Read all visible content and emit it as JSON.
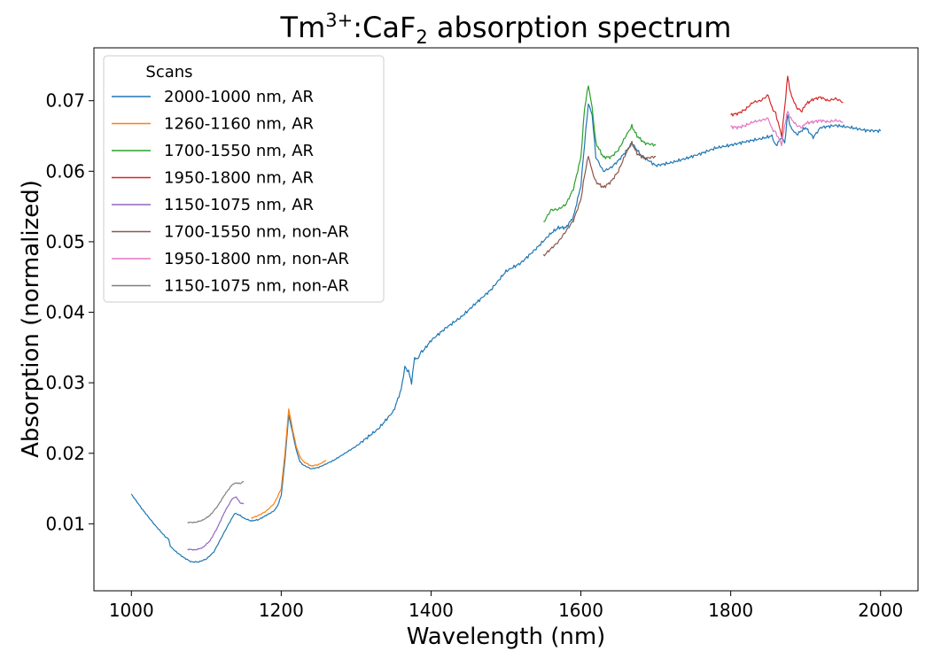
{
  "chart_data": {
    "type": "line",
    "title_parts": {
      "pre": "Tm",
      "sup": "3+",
      "mid": ":CaF",
      "sub": "2",
      "post": " absorption spectrum"
    },
    "xlabel": "Wavelength (nm)",
    "ylabel": "Absorption (normalized)",
    "xlim": [
      950,
      2050
    ],
    "ylim": [
      0.0005,
      0.0775
    ],
    "xticks": [
      1000,
      1200,
      1400,
      1600,
      1800,
      2000
    ],
    "yticks": [
      0.01,
      0.02,
      0.03,
      0.04,
      0.05,
      0.06,
      0.07
    ],
    "ytick_labels": [
      "0.01",
      "0.02",
      "0.03",
      "0.04",
      "0.05",
      "0.06",
      "0.07"
    ],
    "grid": false,
    "legend": {
      "title": "Scans",
      "placement": "top-left"
    },
    "series": [
      {
        "name": "2000-1000 nm, AR",
        "color": "#1f77b4",
        "x": [
          1000,
          1015,
          1030,
          1045,
          1050,
          1052,
          1060,
          1070,
          1080,
          1090,
          1100,
          1110,
          1120,
          1130,
          1138,
          1145,
          1150,
          1160,
          1170,
          1180,
          1190,
          1195,
          1200,
          1205,
          1210,
          1215,
          1220,
          1225,
          1230,
          1240,
          1250,
          1270,
          1300,
          1330,
          1350,
          1360,
          1365,
          1370,
          1374,
          1378,
          1382,
          1386,
          1390,
          1400,
          1420,
          1440,
          1460,
          1480,
          1500,
          1520,
          1540,
          1560,
          1570,
          1580,
          1590,
          1600,
          1605,
          1610,
          1615,
          1620,
          1630,
          1640,
          1650,
          1660,
          1668,
          1680,
          1700,
          1720,
          1740,
          1760,
          1780,
          1800,
          1820,
          1840,
          1855,
          1860,
          1868,
          1872,
          1876,
          1880,
          1888,
          1900,
          1910,
          1920,
          1940,
          1960,
          1980,
          2000
        ],
        "y": [
          0.0142,
          0.012,
          0.01,
          0.0082,
          0.0078,
          0.0068,
          0.006,
          0.0052,
          0.0046,
          0.0046,
          0.005,
          0.006,
          0.008,
          0.01,
          0.0115,
          0.0112,
          0.0108,
          0.0104,
          0.0106,
          0.0112,
          0.0118,
          0.0125,
          0.014,
          0.019,
          0.0254,
          0.023,
          0.0205,
          0.0188,
          0.0183,
          0.0178,
          0.018,
          0.019,
          0.021,
          0.0235,
          0.026,
          0.029,
          0.0322,
          0.0316,
          0.03,
          0.0336,
          0.0333,
          0.0343,
          0.0346,
          0.036,
          0.0378,
          0.0393,
          0.0413,
          0.0432,
          0.0458,
          0.047,
          0.049,
          0.0512,
          0.052,
          0.052,
          0.0535,
          0.058,
          0.064,
          0.0696,
          0.068,
          0.062,
          0.06,
          0.0605,
          0.0615,
          0.0628,
          0.064,
          0.0623,
          0.0608,
          0.0612,
          0.0618,
          0.0625,
          0.0633,
          0.0637,
          0.0642,
          0.0646,
          0.065,
          0.0636,
          0.0648,
          0.064,
          0.068,
          0.0662,
          0.0652,
          0.0662,
          0.0648,
          0.0662,
          0.0665,
          0.0662,
          0.0658,
          0.0657
        ]
      },
      {
        "name": "1260-1160 nm, AR",
        "color": "#ff7f0e",
        "x": [
          1160,
          1170,
          1180,
          1190,
          1195,
          1200,
          1205,
          1210,
          1215,
          1220,
          1225,
          1230,
          1240,
          1250,
          1260
        ],
        "y": [
          0.0108,
          0.0112,
          0.0118,
          0.0128,
          0.0138,
          0.015,
          0.02,
          0.0263,
          0.0235,
          0.021,
          0.0195,
          0.0188,
          0.0182,
          0.0184,
          0.019
        ]
      },
      {
        "name": "1700-1550 nm, AR",
        "color": "#2ca02c",
        "x": [
          1550,
          1560,
          1570,
          1580,
          1590,
          1600,
          1605,
          1610,
          1615,
          1620,
          1630,
          1640,
          1650,
          1660,
          1668,
          1675,
          1685,
          1700
        ],
        "y": [
          0.0527,
          0.0545,
          0.0546,
          0.0553,
          0.0575,
          0.062,
          0.069,
          0.0722,
          0.069,
          0.064,
          0.062,
          0.062,
          0.063,
          0.065,
          0.0664,
          0.065,
          0.064,
          0.0637
        ]
      },
      {
        "name": "1950-1800 nm, AR",
        "color": "#d62728",
        "x": [
          1800,
          1810,
          1820,
          1830,
          1840,
          1850,
          1855,
          1860,
          1868,
          1872,
          1876,
          1880,
          1888,
          1895,
          1900,
          1910,
          1920,
          1930,
          1940,
          1950
        ],
        "y": [
          0.068,
          0.0682,
          0.0688,
          0.0698,
          0.07,
          0.0708,
          0.069,
          0.0682,
          0.065,
          0.069,
          0.0735,
          0.071,
          0.069,
          0.0685,
          0.0695,
          0.0702,
          0.0705,
          0.07,
          0.0703,
          0.0698
        ]
      },
      {
        "name": "1150-1075 nm, AR",
        "color": "#9467bd",
        "x": [
          1075,
          1085,
          1095,
          1105,
          1115,
          1125,
          1135,
          1140,
          1145,
          1150
        ],
        "y": [
          0.0064,
          0.0063,
          0.0066,
          0.0076,
          0.0095,
          0.0118,
          0.0136,
          0.0138,
          0.013,
          0.0128
        ]
      },
      {
        "name": "1700-1550 nm, non-AR",
        "color": "#8c564b",
        "x": [
          1550,
          1560,
          1570,
          1580,
          1590,
          1600,
          1605,
          1610,
          1615,
          1620,
          1630,
          1640,
          1650,
          1660,
          1668,
          1675,
          1685,
          1700
        ],
        "y": [
          0.048,
          0.049,
          0.05,
          0.0515,
          0.053,
          0.056,
          0.0595,
          0.0622,
          0.06,
          0.0585,
          0.0577,
          0.0585,
          0.06,
          0.0625,
          0.064,
          0.0625,
          0.0618,
          0.0621
        ]
      },
      {
        "name": "1950-1800 nm, non-AR",
        "color": "#e377c2",
        "x": [
          1800,
          1810,
          1820,
          1830,
          1840,
          1850,
          1855,
          1860,
          1868,
          1872,
          1876,
          1880,
          1888,
          1895,
          1900,
          1910,
          1920,
          1930,
          1940,
          1950
        ],
        "y": [
          0.0663,
          0.0662,
          0.0665,
          0.067,
          0.0672,
          0.0675,
          0.066,
          0.0655,
          0.0638,
          0.0665,
          0.0685,
          0.0675,
          0.0665,
          0.0662,
          0.0668,
          0.067,
          0.0672,
          0.067,
          0.0672,
          0.067
        ]
      },
      {
        "name": "1150-1075 nm, non-AR",
        "color": "#7f7f7f",
        "x": [
          1075,
          1085,
          1095,
          1105,
          1115,
          1125,
          1135,
          1140,
          1145,
          1150
        ],
        "y": [
          0.0102,
          0.0102,
          0.0105,
          0.0112,
          0.0125,
          0.0142,
          0.0156,
          0.0158,
          0.0157,
          0.016
        ]
      }
    ]
  }
}
